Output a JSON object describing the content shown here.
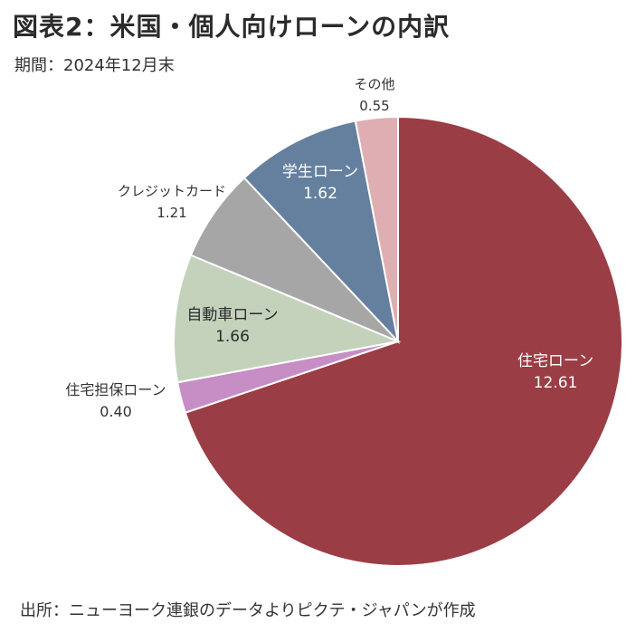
{
  "title": "図表2：米国・個人向けローンの内訳",
  "subtitle": "期間：2024年12月末",
  "source": "出所：ニューヨーク連銀のデータよりピクテ・ジャパンが作成",
  "chart_data": {
    "type": "pie",
    "title": "図表2：米国・個人向けローンの内訳",
    "subtitle": "期間：2024年12月末",
    "unit": "",
    "start_angle": "12 o'clock",
    "direction": "clockwise",
    "slices": [
      {
        "label": "住宅ローン",
        "value": "12.61",
        "color": "#9b3d45"
      },
      {
        "label": "住宅担保ローン",
        "value": "0.40",
        "color": "#c78dc5"
      },
      {
        "label": "自動車ローン",
        "value": "1.66",
        "color": "#c4d2bc"
      },
      {
        "label": "クレジットカード",
        "value": "1.21",
        "color": "#a6a6a6"
      },
      {
        "label": "学生ローン",
        "value": "1.62",
        "color": "#65809f"
      },
      {
        "label": "その他",
        "value": "0.55",
        "color": "#deaeb2"
      }
    ]
  }
}
